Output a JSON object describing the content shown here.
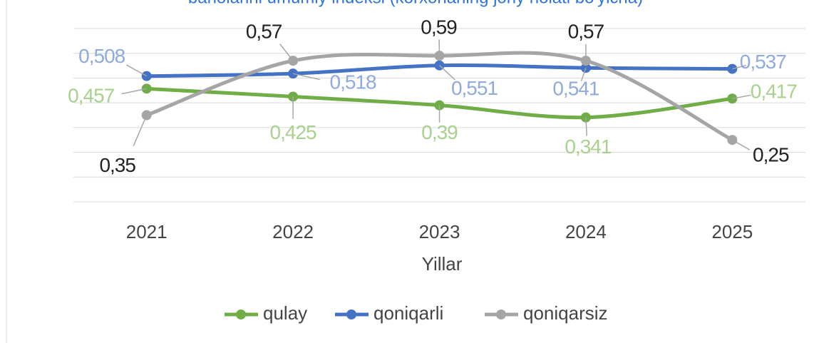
{
  "chart_data": {
    "type": "line",
    "title": "baholarini umumiy indeksi (korxonaning joriy holati bo'yicha)",
    "x_label": "Yillar",
    "categories": [
      "2021",
      "2022",
      "2023",
      "2024",
      "2025"
    ],
    "series": [
      {
        "name": "qulay",
        "color": "#70ad47",
        "label_color": "#a9d18e",
        "values": [
          0.457,
          0.425,
          0.39,
          0.341,
          0.417
        ],
        "value_labels": [
          "0,457",
          "0,425",
          "0,39",
          "0,341",
          "0,417"
        ]
      },
      {
        "name": "qoniqarli",
        "color": "#4472c4",
        "label_color": "#8faadc",
        "values": [
          0.508,
          0.518,
          0.551,
          0.541,
          0.537
        ],
        "value_labels": [
          "0,508",
          "0,518",
          "0,551",
          "0,541",
          "0,537"
        ]
      },
      {
        "name": "qoniqarsiz",
        "color": "#a5a5a5",
        "label_color": "#222222",
        "values": [
          0.35,
          0.57,
          0.59,
          0.57,
          0.25
        ],
        "value_labels": [
          "0,35",
          "0,57",
          "0,59",
          "0,57",
          "0,25"
        ]
      }
    ],
    "ylim": [
      0,
      0.7
    ],
    "yticks": [
      0,
      0.1,
      0.2,
      0.3,
      0.4,
      0.5,
      0.6,
      0.7
    ],
    "grid": true,
    "smooth": true,
    "legend": "bottom"
  }
}
